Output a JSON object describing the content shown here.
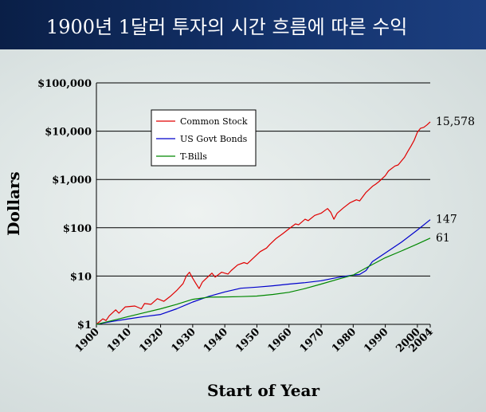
{
  "title": "1900년 1달러 투자의 시간 흐름에 따른 수익",
  "chart_data": {
    "type": "line",
    "y_scale": "log",
    "xlabel": "Start of Year",
    "ylabel": "Dollars",
    "xlim": [
      1900,
      2004
    ],
    "ylim": [
      1,
      100000
    ],
    "y_ticks": [
      1,
      10,
      100,
      1000,
      10000,
      100000
    ],
    "y_tick_labels": [
      "$1",
      "$10",
      "$100",
      "$1,000",
      "$10,000",
      "$100,000"
    ],
    "x_ticks": [
      1900,
      1910,
      1920,
      1930,
      1940,
      1950,
      1960,
      1970,
      1980,
      1990,
      2000,
      2004
    ],
    "x_tick_labels": [
      "1900",
      "1910",
      "1920",
      "1930",
      "1940",
      "1950",
      "1960",
      "1970",
      "1980",
      "1990",
      "2000",
      "2004"
    ],
    "grid": "horizontal",
    "legend_position": "upper-left",
    "series": [
      {
        "name": "Common Stock",
        "color": "#e00000",
        "end_label": "15,578",
        "x": [
          1900,
          1902,
          1903,
          1904,
          1906,
          1907,
          1909,
          1912,
          1914,
          1915,
          1917,
          1919,
          1921,
          1923,
          1925,
          1927,
          1928,
          1929,
          1930,
          1931,
          1932,
          1933,
          1935,
          1936,
          1937,
          1939,
          1941,
          1942,
          1944,
          1946,
          1947,
          1949,
          1951,
          1953,
          1954,
          1956,
          1958,
          1960,
          1962,
          1963,
          1965,
          1966,
          1968,
          1970,
          1972,
          1973,
          1974,
          1975,
          1977,
          1979,
          1981,
          1982,
          1984,
          1986,
          1987,
          1988,
          1990,
          1991,
          1993,
          1994,
          1996,
          1997,
          1998,
          1999,
          2000,
          2001,
          2002,
          2003,
          2004
        ],
        "values": [
          1,
          1.3,
          1.2,
          1.5,
          2,
          1.7,
          2.3,
          2.4,
          2.1,
          2.7,
          2.6,
          3.4,
          3,
          3.8,
          5,
          7,
          10,
          12,
          9,
          7,
          5.5,
          7.5,
          10,
          11.5,
          9.5,
          12,
          11,
          13,
          17,
          19,
          18,
          24,
          32,
          38,
          45,
          60,
          75,
          95,
          120,
          115,
          150,
          140,
          180,
          200,
          250,
          210,
          150,
          200,
          260,
          330,
          380,
          360,
          540,
          720,
          800,
          900,
          1200,
          1500,
          1900,
          2000,
          2900,
          3800,
          4900,
          6500,
          9500,
          11500,
          12000,
          13500,
          15578
        ]
      },
      {
        "name": "US Govt Bonds",
        "color": "#0000cc",
        "end_label": "147",
        "x": [
          1900,
          1905,
          1910,
          1915,
          1920,
          1925,
          1930,
          1935,
          1940,
          1945,
          1950,
          1955,
          1960,
          1965,
          1970,
          1975,
          1980,
          1982,
          1984,
          1986,
          1990,
          1995,
          2000,
          2004
        ],
        "values": [
          1,
          1.15,
          1.3,
          1.45,
          1.6,
          2.1,
          2.9,
          3.8,
          4.7,
          5.6,
          5.9,
          6.3,
          6.8,
          7.3,
          8,
          9.3,
          10.5,
          10.8,
          13,
          20,
          30,
          50,
          90,
          147
        ]
      },
      {
        "name": "T-Bills",
        "color": "#008800",
        "end_label": "61",
        "x": [
          1900,
          1905,
          1910,
          1915,
          1920,
          1925,
          1930,
          1935,
          1940,
          1945,
          1950,
          1955,
          1960,
          1965,
          1970,
          1975,
          1980,
          1985,
          1990,
          1995,
          2000,
          2004
        ],
        "values": [
          1,
          1.2,
          1.45,
          1.75,
          2.1,
          2.6,
          3.3,
          3.65,
          3.7,
          3.75,
          3.85,
          4.15,
          4.6,
          5.5,
          6.8,
          8.5,
          10.5,
          16,
          24,
          33,
          46,
          61
        ]
      }
    ]
  }
}
